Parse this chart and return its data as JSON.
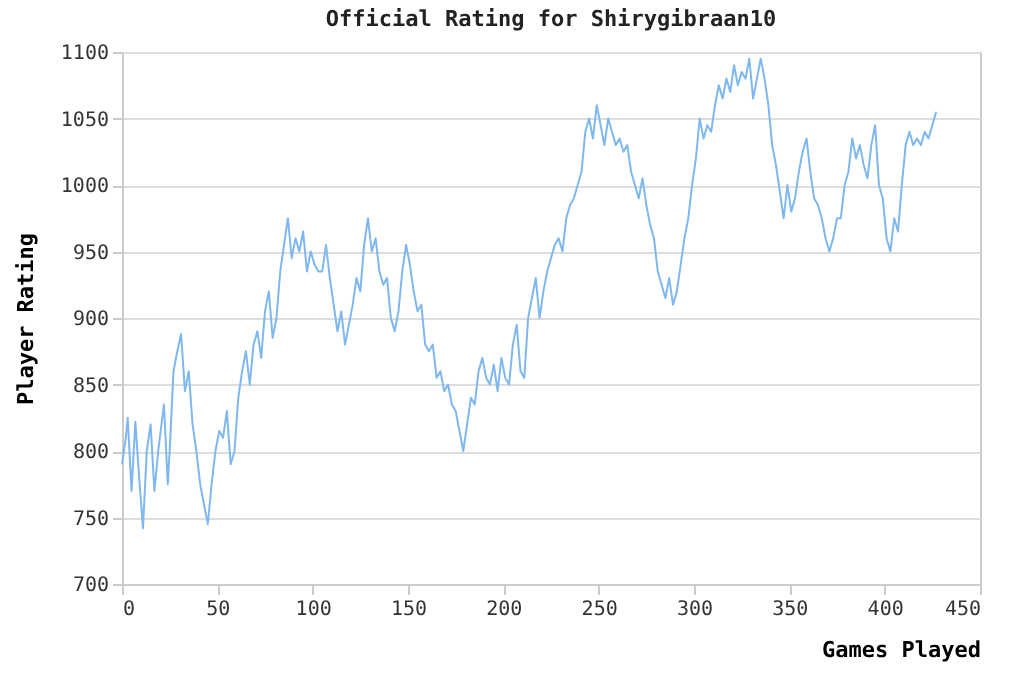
{
  "chart_data": {
    "type": "line",
    "title": "Official Rating for Shirygibraan10",
    "xlabel": "Games Played",
    "ylabel": "Player Rating",
    "xlim": [
      0,
      450
    ],
    "xticks": [
      0,
      50,
      100,
      150,
      200,
      250,
      300,
      350,
      400,
      450
    ],
    "ylim": [
      700,
      1100
    ],
    "yticks": [
      700,
      750,
      800,
      850,
      900,
      950,
      1000,
      1050,
      1100
    ],
    "grid": "y",
    "marker": "none",
    "line_style": "solid",
    "series": [
      {
        "color": "#7fb8ee",
        "x": [
          0,
          2,
          3,
          5,
          7,
          9,
          11,
          13,
          15,
          17,
          19,
          22,
          24,
          25,
          27,
          29,
          31,
          33,
          35,
          37,
          39,
          41,
          43,
          45,
          47,
          49,
          51,
          53,
          55,
          57,
          59,
          61,
          63,
          65,
          67,
          69,
          71,
          73,
          75,
          77,
          79,
          81,
          83,
          85,
          87,
          89,
          91,
          93,
          95,
          97,
          99,
          101,
          103,
          105,
          107,
          109,
          111,
          113,
          115,
          117,
          119,
          121,
          123,
          125,
          127,
          129,
          131,
          133,
          135,
          137,
          139,
          141,
          143,
          145,
          147,
          149,
          151,
          153,
          155,
          157,
          159,
          161,
          163,
          165,
          167,
          169,
          171,
          173,
          175,
          177,
          179,
          181,
          183,
          185,
          187,
          189,
          191,
          193,
          195,
          197,
          199,
          201,
          203,
          205,
          207,
          209,
          211,
          213,
          215,
          217,
          219,
          221,
          223,
          225,
          227,
          229,
          231,
          233,
          235,
          237,
          239,
          241,
          243,
          245,
          247,
          249,
          251,
          253,
          255,
          257,
          259,
          261,
          263,
          265,
          267,
          269,
          271,
          273,
          275,
          277,
          279,
          281,
          283,
          285,
          287,
          289,
          291,
          293,
          295,
          297,
          299,
          301,
          303,
          305,
          307,
          309,
          311,
          313,
          315,
          317,
          319,
          321,
          323,
          325,
          327,
          329,
          331,
          333,
          335,
          337,
          339,
          341,
          343,
          345,
          347,
          349,
          351,
          353,
          355,
          357,
          359,
          361,
          363,
          365,
          367,
          369,
          371,
          373,
          375,
          377,
          379,
          381,
          383,
          385,
          387,
          389,
          391,
          393,
          395,
          397,
          399,
          401,
          403,
          405,
          407,
          409,
          411,
          413,
          415,
          417,
          419,
          421,
          423,
          425,
          427
        ],
        "values": [
          790,
          810,
          825,
          770,
          822,
          780,
          742,
          800,
          820,
          770,
          800,
          835,
          775,
          800,
          860,
          875,
          888,
          845,
          860,
          820,
          800,
          775,
          760,
          745,
          775,
          800,
          815,
          810,
          830,
          790,
          800,
          840,
          860,
          875,
          850,
          880,
          890,
          870,
          905,
          920,
          885,
          900,
          935,
          955,
          975,
          945,
          960,
          950,
          965,
          935,
          950,
          940,
          935,
          935,
          955,
          930,
          910,
          890,
          905,
          880,
          895,
          910,
          930,
          920,
          955,
          975,
          950,
          960,
          935,
          925,
          930,
          900,
          890,
          905,
          935,
          955,
          940,
          920,
          905,
          910,
          880,
          875,
          880,
          855,
          860,
          845,
          850,
          835,
          830,
          815,
          800,
          820,
          840,
          835,
          860,
          870,
          855,
          850,
          865,
          845,
          870,
          855,
          850,
          880,
          895,
          860,
          855,
          900,
          915,
          930,
          900,
          920,
          935,
          945,
          955,
          960,
          950,
          975,
          985,
          990,
          1000,
          1010,
          1040,
          1050,
          1035,
          1060,
          1045,
          1030,
          1050,
          1040,
          1030,
          1035,
          1025,
          1030,
          1010,
          1000,
          990,
          1005,
          985,
          970,
          960,
          935,
          925,
          915,
          930,
          910,
          920,
          940,
          960,
          975,
          1000,
          1020,
          1050,
          1035,
          1045,
          1040,
          1060,
          1075,
          1065,
          1080,
          1070,
          1090,
          1075,
          1085,
          1080,
          1095,
          1065,
          1080,
          1095,
          1080,
          1060,
          1030,
          1015,
          995,
          975,
          1000,
          980,
          990,
          1010,
          1025,
          1035,
          1010,
          990,
          985,
          975,
          960,
          950,
          960,
          975,
          975,
          1000,
          1010,
          1035,
          1020,
          1030,
          1015,
          1005,
          1030,
          1045,
          1000,
          990,
          960,
          950,
          975,
          965,
          1000,
          1030,
          1040,
          1030,
          1035,
          1030,
          1040,
          1035,
          1045,
          1055
        ]
      }
    ]
  }
}
